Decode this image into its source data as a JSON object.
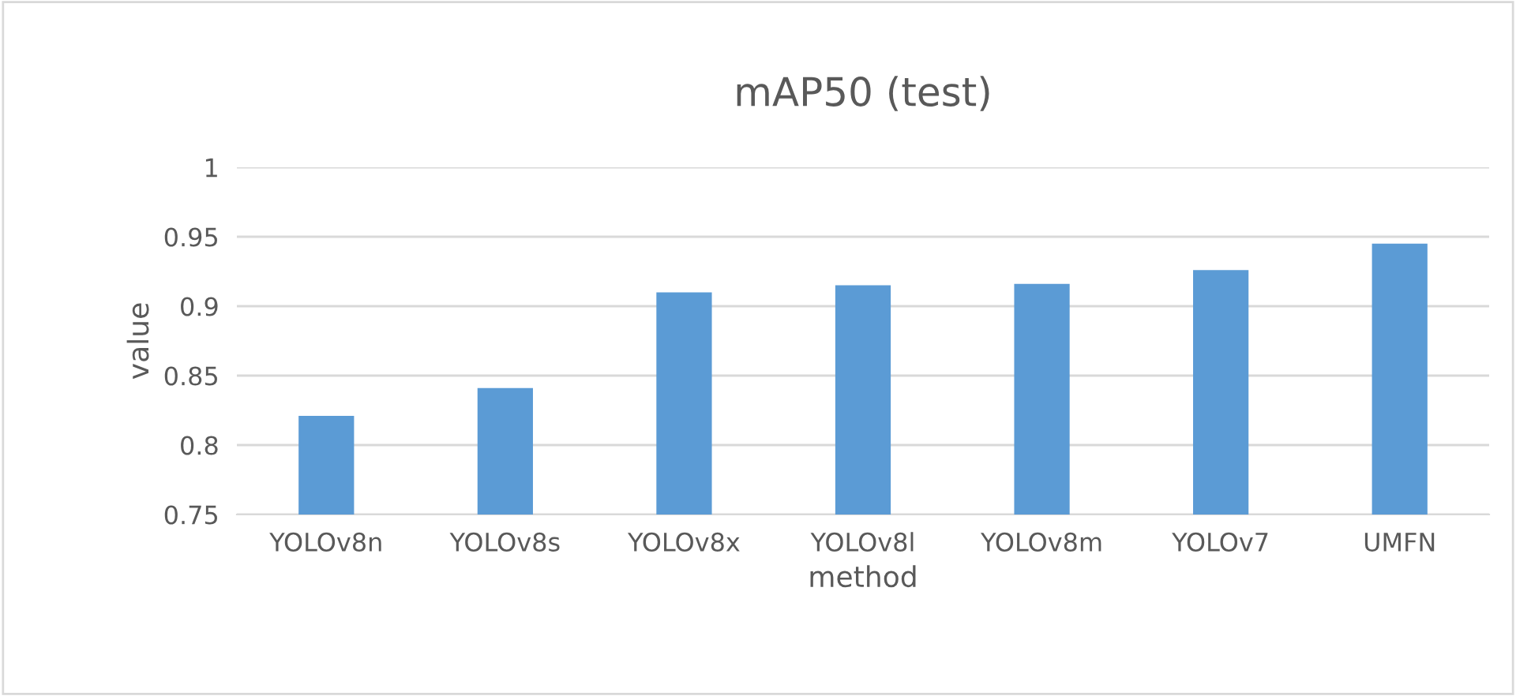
{
  "chart_data": {
    "type": "bar",
    "title": "mAP50 (test)",
    "xlabel": "method",
    "ylabel": "value",
    "categories": [
      "YOLOv8n",
      "YOLOv8s",
      "YOLOv8x",
      "YOLOv8l",
      "YOLOv8m",
      "YOLOv7",
      "UMFN"
    ],
    "values": [
      0.821,
      0.841,
      0.91,
      0.915,
      0.916,
      0.926,
      0.945
    ],
    "color": "#5b9bd5",
    "ylim": [
      0.75,
      1
    ],
    "yticks": [
      0.75,
      0.8,
      0.85,
      0.9,
      0.95,
      1
    ],
    "grid": "y",
    "legend": false
  }
}
